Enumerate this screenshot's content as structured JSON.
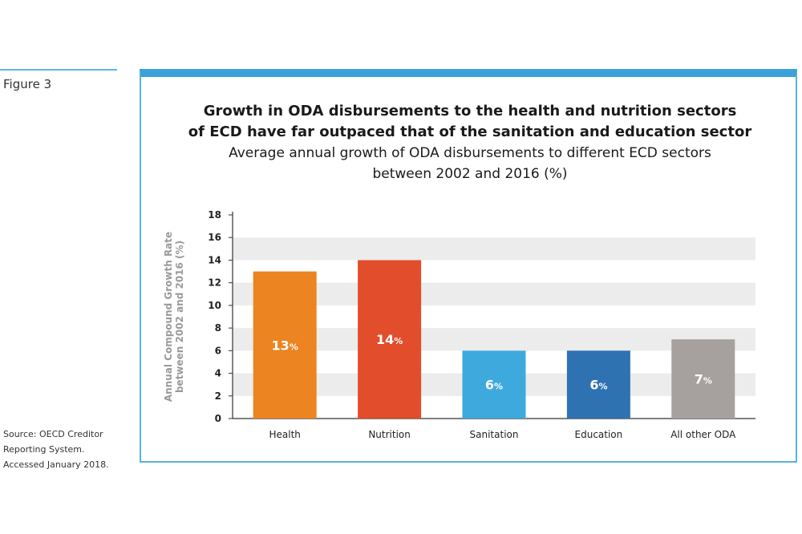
{
  "figure_label": "Figure 3",
  "source": [
    "Source: OECD Creditor",
    "Reporting System.",
    "Accessed January 2018."
  ],
  "colors": {
    "accent": "#3aa2d8",
    "grid_band": "#ececec"
  },
  "chart_data": {
    "type": "bar",
    "title": [
      "Growth in ODA disbursements to the health and nutrition sectors",
      "of ECD have far outpaced that of the sanitation and education sector"
    ],
    "subtitle": [
      "Average annual growth of ODA disbursements to different ECD sectors",
      "between 2002 and 2016 (%)"
    ],
    "ylabel": [
      "Annual Compound Growth Rate",
      "between 2002 and 2016 (%)"
    ],
    "xlabel": "",
    "categories": [
      "Health",
      "Nutrition",
      "Sanitation",
      "Education",
      "All other ODA"
    ],
    "values": [
      13,
      14,
      6,
      6,
      7
    ],
    "data_labels": [
      {
        "num": "13",
        "unit": "%"
      },
      {
        "num": "14",
        "unit": "%"
      },
      {
        "num": "6",
        "unit": "%"
      },
      {
        "num": "6",
        "unit": "%"
      },
      {
        "num": "7",
        "unit": "%"
      }
    ],
    "colors": [
      "#ec8421",
      "#e24d2c",
      "#3ea9dc",
      "#2e72b2",
      "#a6a19e"
    ],
    "ylim": [
      0,
      18
    ],
    "yticks": [
      0,
      2,
      4,
      6,
      8,
      10,
      12,
      14,
      16,
      18
    ],
    "grid": "alternating bands",
    "legend": "none"
  }
}
